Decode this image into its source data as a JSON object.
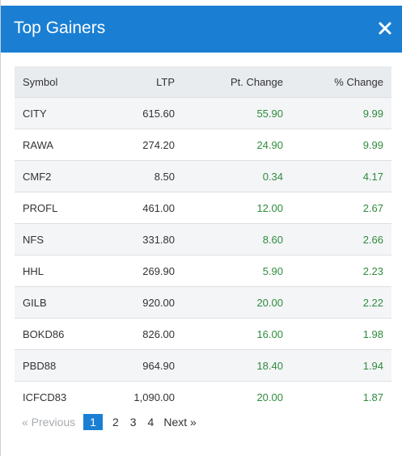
{
  "modal": {
    "title": "Top Gainers",
    "close_icon": "close-icon"
  },
  "table": {
    "headers": [
      "Symbol",
      "LTP",
      "Pt. Change",
      "% Change"
    ],
    "rows": [
      [
        "CITY",
        "615.60",
        "55.90",
        "9.99"
      ],
      [
        "RAWA",
        "274.20",
        "24.90",
        "9.99"
      ],
      [
        "CMF2",
        "8.50",
        "0.34",
        "4.17"
      ],
      [
        "PROFL",
        "461.00",
        "12.00",
        "2.67"
      ],
      [
        "NFS",
        "331.80",
        "8.60",
        "2.66"
      ],
      [
        "HHL",
        "269.90",
        "5.90",
        "2.23"
      ],
      [
        "GILB",
        "920.00",
        "20.00",
        "2.22"
      ],
      [
        "BOKD86",
        "826.00",
        "16.00",
        "1.98"
      ],
      [
        "PBD88",
        "964.90",
        "18.40",
        "1.94"
      ],
      [
        "ICFCD83",
        "1,090.00",
        "20.00",
        "1.87"
      ]
    ]
  },
  "pagination": {
    "prev_label": "« Previous",
    "pages": [
      "1",
      "2",
      "3",
      "4"
    ],
    "active_page": "1",
    "next_label": "Next »"
  },
  "colors": {
    "header_bg": "#1a7fd3",
    "positive": "#2e8b3d"
  }
}
